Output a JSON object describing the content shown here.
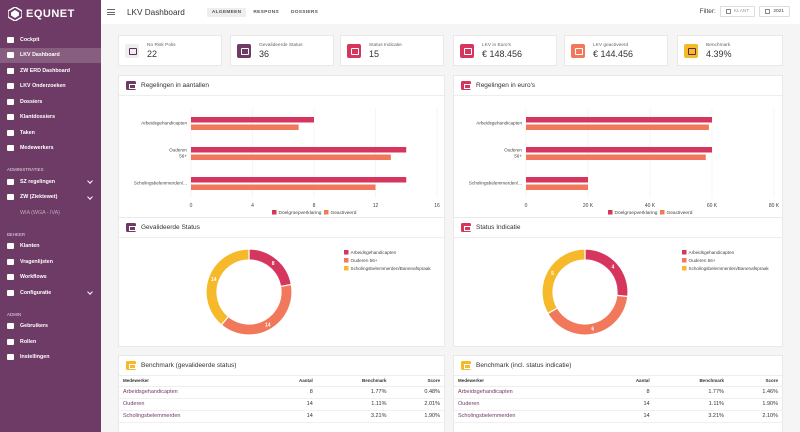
{
  "brand": {
    "name": "EQUNET"
  },
  "sidebar": {
    "items": [
      {
        "label": "Cockpit"
      },
      {
        "label": "LKV Dashboard",
        "active": true
      },
      {
        "label": "ZW ERD Dashboard"
      },
      {
        "label": "LKV Onderzoeken"
      },
      {
        "label": "Dossiers"
      },
      {
        "label": "Klantdossiers"
      },
      {
        "label": "Taken"
      },
      {
        "label": "Medewerkers"
      }
    ],
    "section_admin": "ADMINISTRATIES",
    "admin_items": [
      {
        "label": "SZ regelingen"
      },
      {
        "label": "ZW (Ziektewet)"
      },
      {
        "label": "WIA (WGA - IVA)"
      }
    ],
    "section_beheer": "BEHEER",
    "beheer_items": [
      {
        "label": "Klanten"
      },
      {
        "label": "Vragenlijsten"
      },
      {
        "label": "Workflows"
      },
      {
        "label": "Configuratie"
      }
    ],
    "section_sysadmin": "ADMIN",
    "sysadmin_items": [
      {
        "label": "Gebruikers"
      },
      {
        "label": "Rollen"
      },
      {
        "label": "Instellingen"
      }
    ]
  },
  "header": {
    "title": "LKV Dashboard",
    "tabs": [
      {
        "label": "ALGEMEEN",
        "active": true
      },
      {
        "label": "RESPONS"
      },
      {
        "label": "DOSSIERS"
      }
    ],
    "filter_label": "Filter:",
    "filter_client": "KLANT",
    "filter_year": "2021"
  },
  "kpis": [
    {
      "label": "No Risk Polis",
      "value": "22",
      "color": "#eeeeee"
    },
    {
      "label": "Gevalideerde Status",
      "value": "36",
      "color": "#6d3b65"
    },
    {
      "label": "Status Indicatie",
      "value": "15",
      "color": "#d6365d"
    },
    {
      "label": "LKV in Euro's",
      "value": "€ 148.456",
      "color": "#d6365d"
    },
    {
      "label": "LKV geactiveerd",
      "value": "€ 144.456",
      "color": "#f2785c"
    },
    {
      "label": "Benchmark",
      "value": "4.39%",
      "color": "#f6b929"
    }
  ],
  "colors": {
    "crimson": "#d6365d",
    "salmon": "#f2785c",
    "yellow": "#f6b929",
    "purple": "#6d3b65"
  },
  "charts": {
    "bar_counts_title": "Regelingen in aantallen",
    "bar_euros_title": "Regelingen in euro's",
    "donut_gevalideerd_title": "Gevalideerde Status",
    "donut_indicatie_title": "Status Indicatie"
  },
  "chart_data": [
    {
      "type": "bar",
      "orientation": "horizontal",
      "title": "Regelingen in aantallen",
      "categories": [
        "Arbeidsgehandicapten",
        "Ouderen 56+",
        "Scholingsbelemmerden/..."
      ],
      "series": [
        {
          "name": "Doelgroepverklaring",
          "values": [
            8,
            14,
            14
          ]
        },
        {
          "name": "Geactiveerd",
          "values": [
            7,
            13,
            12
          ]
        }
      ],
      "xlim": [
        0,
        16
      ],
      "xticks": [
        "0",
        "4",
        "8",
        "12",
        "16"
      ],
      "legend": "bottom"
    },
    {
      "type": "bar",
      "orientation": "horizontal",
      "title": "Regelingen in euro's",
      "categories": [
        "Arbeidsgehandicapten",
        "Ouderen 56+",
        "Scholingsbelemmerden/..."
      ],
      "series": [
        {
          "name": "Doelgroepverklaring",
          "values": [
            60000,
            60000,
            20000
          ]
        },
        {
          "name": "Geactiveerd",
          "values": [
            59000,
            58000,
            20000
          ]
        }
      ],
      "xlim": [
        0,
        80000
      ],
      "xticks": [
        "0",
        "20 K",
        "40 K",
        "60 K",
        "80 K"
      ],
      "legend": "bottom"
    },
    {
      "type": "pie",
      "title": "Gevalideerde Status",
      "categories": [
        "Arbeidsgehandicapten",
        "Ouderen 56+",
        "Scholingsbelemmerden/Banenafspraak"
      ],
      "values": [
        8,
        14,
        14
      ],
      "legend": "right"
    },
    {
      "type": "pie",
      "title": "Status Indicatie",
      "categories": [
        "Arbeidsgehandicapten",
        "Ouderen 56+",
        "Scholingsbelemmerden/Banenafspraak"
      ],
      "values": [
        4,
        6,
        5
      ],
      "legend": "right"
    }
  ],
  "benchmark_left": {
    "title": "Benchmark (gevalideerde status)",
    "columns": [
      "Medewerker",
      "Aantal",
      "Benchmark",
      "Score"
    ],
    "rows": [
      [
        "Arbeidsgehandicapten",
        "8",
        "1.77%",
        "0.48%"
      ],
      [
        "Ouderen",
        "14",
        "1.11%",
        "2.01%"
      ],
      [
        "Scholingsbelemmerden",
        "14",
        "3.21%",
        "1.90%"
      ]
    ]
  },
  "benchmark_right": {
    "title": "Benchmark (incl. status indicatie)",
    "columns": [
      "Medewerker",
      "Aantal",
      "Benchmark",
      "Score"
    ],
    "rows": [
      [
        "Arbeidsgehandicapten",
        "8",
        "1.77%",
        "1.46%"
      ],
      [
        "Ouderen",
        "14",
        "1.11%",
        "1.90%"
      ],
      [
        "Scholingsbelemmerden",
        "14",
        "3.21%",
        "2.10%"
      ]
    ]
  }
}
